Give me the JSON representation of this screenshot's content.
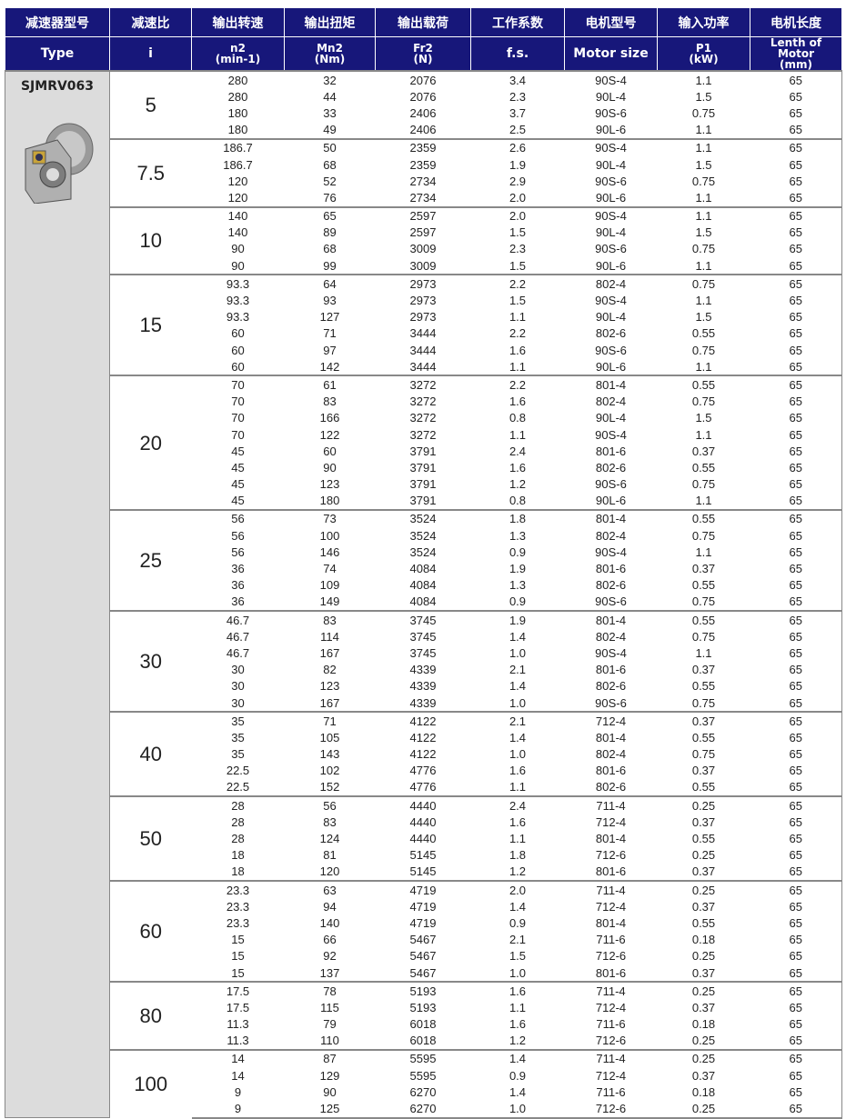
{
  "header_cn": [
    "减速器型号",
    "减速比",
    "输出转速",
    "输出扭矩",
    "输出载荷",
    "工作系数",
    "电机型号",
    "输入功率",
    "电机长度"
  ],
  "header_en": [
    {
      "main": "Type",
      "unit": ""
    },
    {
      "main": "i",
      "unit": ""
    },
    {
      "main": "n2",
      "unit": "(min-1)"
    },
    {
      "main": "Mn2",
      "unit": "(Nm)"
    },
    {
      "main": "Fr2",
      "unit": "(N)"
    },
    {
      "main": "f.s.",
      "unit": ""
    },
    {
      "main": "Motor size",
      "unit": ""
    },
    {
      "main": "P1",
      "unit": "(kW)"
    },
    {
      "main": "Lenth of Motor",
      "unit": "(mm)"
    }
  ],
  "type": "SJMRV063",
  "colors": {
    "header_bg": "#17177a",
    "type_bg": "#dcdcdc"
  },
  "groups": [
    {
      "ratio": "5",
      "rows": [
        [
          "280",
          "32",
          "2076",
          "3.4",
          "90S-4",
          "1.1",
          "65"
        ],
        [
          "280",
          "44",
          "2076",
          "2.3",
          "90L-4",
          "1.5",
          "65"
        ],
        [
          "180",
          "33",
          "2406",
          "3.7",
          "90S-6",
          "0.75",
          "65"
        ],
        [
          "180",
          "49",
          "2406",
          "2.5",
          "90L-6",
          "1.1",
          "65"
        ]
      ]
    },
    {
      "ratio": "7.5",
      "rows": [
        [
          "186.7",
          "50",
          "2359",
          "2.6",
          "90S-4",
          "1.1",
          "65"
        ],
        [
          "186.7",
          "68",
          "2359",
          "1.9",
          "90L-4",
          "1.5",
          "65"
        ],
        [
          "120",
          "52",
          "2734",
          "2.9",
          "90S-6",
          "0.75",
          "65"
        ],
        [
          "120",
          "76",
          "2734",
          "2.0",
          "90L-6",
          "1.1",
          "65"
        ]
      ]
    },
    {
      "ratio": "10",
      "rows": [
        [
          "140",
          "65",
          "2597",
          "2.0",
          "90S-4",
          "1.1",
          "65"
        ],
        [
          "140",
          "89",
          "2597",
          "1.5",
          "90L-4",
          "1.5",
          "65"
        ],
        [
          "90",
          "68",
          "3009",
          "2.3",
          "90S-6",
          "0.75",
          "65"
        ],
        [
          "90",
          "99",
          "3009",
          "1.5",
          "90L-6",
          "1.1",
          "65"
        ]
      ]
    },
    {
      "ratio": "15",
      "rows": [
        [
          "93.3",
          "64",
          "2973",
          "2.2",
          "802-4",
          "0.75",
          "65"
        ],
        [
          "93.3",
          "93",
          "2973",
          "1.5",
          "90S-4",
          "1.1",
          "65"
        ],
        [
          "93.3",
          "127",
          "2973",
          "1.1",
          "90L-4",
          "1.5",
          "65"
        ],
        [
          "60",
          "71",
          "3444",
          "2.2",
          "802-6",
          "0.55",
          "65"
        ],
        [
          "60",
          "97",
          "3444",
          "1.6",
          "90S-6",
          "0.75",
          "65"
        ],
        [
          "60",
          "142",
          "3444",
          "1.1",
          "90L-6",
          "1.1",
          "65"
        ]
      ]
    },
    {
      "ratio": "20",
      "rows": [
        [
          "70",
          "61",
          "3272",
          "2.2",
          "801-4",
          "0.55",
          "65"
        ],
        [
          "70",
          "83",
          "3272",
          "1.6",
          "802-4",
          "0.75",
          "65"
        ],
        [
          "70",
          "166",
          "3272",
          "0.8",
          "90L-4",
          "1.5",
          "65"
        ],
        [
          "70",
          "122",
          "3272",
          "1.1",
          "90S-4",
          "1.1",
          "65"
        ],
        [
          "45",
          "60",
          "3791",
          "2.4",
          "801-6",
          "0.37",
          "65"
        ],
        [
          "45",
          "90",
          "3791",
          "1.6",
          "802-6",
          "0.55",
          "65"
        ],
        [
          "45",
          "123",
          "3791",
          "1.2",
          "90S-6",
          "0.75",
          "65"
        ],
        [
          "45",
          "180",
          "3791",
          "0.8",
          "90L-6",
          "1.1",
          "65"
        ]
      ]
    },
    {
      "ratio": "25",
      "rows": [
        [
          "56",
          "73",
          "3524",
          "1.8",
          "801-4",
          "0.55",
          "65"
        ],
        [
          "56",
          "100",
          "3524",
          "1.3",
          "802-4",
          "0.75",
          "65"
        ],
        [
          "56",
          "146",
          "3524",
          "0.9",
          "90S-4",
          "1.1",
          "65"
        ],
        [
          "36",
          "74",
          "4084",
          "1.9",
          "801-6",
          "0.37",
          "65"
        ],
        [
          "36",
          "109",
          "4084",
          "1.3",
          "802-6",
          "0.55",
          "65"
        ],
        [
          "36",
          "149",
          "4084",
          "0.9",
          "90S-6",
          "0.75",
          "65"
        ]
      ]
    },
    {
      "ratio": "30",
      "rows": [
        [
          "46.7",
          "83",
          "3745",
          "1.9",
          "801-4",
          "0.55",
          "65"
        ],
        [
          "46.7",
          "114",
          "3745",
          "1.4",
          "802-4",
          "0.75",
          "65"
        ],
        [
          "46.7",
          "167",
          "3745",
          "1.0",
          "90S-4",
          "1.1",
          "65"
        ],
        [
          "30",
          "82",
          "4339",
          "2.1",
          "801-6",
          "0.37",
          "65"
        ],
        [
          "30",
          "123",
          "4339",
          "1.4",
          "802-6",
          "0.55",
          "65"
        ],
        [
          "30",
          "167",
          "4339",
          "1.0",
          "90S-6",
          "0.75",
          "65"
        ]
      ]
    },
    {
      "ratio": "40",
      "rows": [
        [
          "35",
          "71",
          "4122",
          "2.1",
          "712-4",
          "0.37",
          "65"
        ],
        [
          "35",
          "105",
          "4122",
          "1.4",
          "801-4",
          "0.55",
          "65"
        ],
        [
          "35",
          "143",
          "4122",
          "1.0",
          "802-4",
          "0.75",
          "65"
        ],
        [
          "22.5",
          "102",
          "4776",
          "1.6",
          "801-6",
          "0.37",
          "65"
        ],
        [
          "22.5",
          "152",
          "4776",
          "1.1",
          "802-6",
          "0.55",
          "65"
        ]
      ]
    },
    {
      "ratio": "50",
      "rows": [
        [
          "28",
          "56",
          "4440",
          "2.4",
          "711-4",
          "0.25",
          "65"
        ],
        [
          "28",
          "83",
          "4440",
          "1.6",
          "712-4",
          "0.37",
          "65"
        ],
        [
          "28",
          "124",
          "4440",
          "1.1",
          "801-4",
          "0.55",
          "65"
        ],
        [
          "18",
          "81",
          "5145",
          "1.8",
          "712-6",
          "0.25",
          "65"
        ],
        [
          "18",
          "120",
          "5145",
          "1.2",
          "801-6",
          "0.37",
          "65"
        ]
      ]
    },
    {
      "ratio": "60",
      "rows": [
        [
          "23.3",
          "63",
          "4719",
          "2.0",
          "711-4",
          "0.25",
          "65"
        ],
        [
          "23.3",
          "94",
          "4719",
          "1.4",
          "712-4",
          "0.37",
          "65"
        ],
        [
          "23.3",
          "140",
          "4719",
          "0.9",
          "801-4",
          "0.55",
          "65"
        ],
        [
          "15",
          "66",
          "5467",
          "2.1",
          "711-6",
          "0.18",
          "65"
        ],
        [
          "15",
          "92",
          "5467",
          "1.5",
          "712-6",
          "0.25",
          "65"
        ],
        [
          "15",
          "137",
          "5467",
          "1.0",
          "801-6",
          "0.37",
          "65"
        ]
      ]
    },
    {
      "ratio": "80",
      "rows": [
        [
          "17.5",
          "78",
          "5193",
          "1.6",
          "711-4",
          "0.25",
          "65"
        ],
        [
          "17.5",
          "115",
          "5193",
          "1.1",
          "712-4",
          "0.37",
          "65"
        ],
        [
          "11.3",
          "79",
          "6018",
          "1.6",
          "711-6",
          "0.18",
          "65"
        ],
        [
          "11.3",
          "110",
          "6018",
          "1.2",
          "712-6",
          "0.25",
          "65"
        ]
      ]
    },
    {
      "ratio": "100",
      "rows": [
        [
          "14",
          "87",
          "5595",
          "1.4",
          "711-4",
          "0.25",
          "65"
        ],
        [
          "14",
          "129",
          "5595",
          "0.9",
          "712-4",
          "0.37",
          "65"
        ],
        [
          "9",
          "90",
          "6270",
          "1.4",
          "711-6",
          "0.18",
          "65"
        ],
        [
          "9",
          "125",
          "6270",
          "1.0",
          "712-6",
          "0.25",
          "65"
        ]
      ]
    }
  ]
}
